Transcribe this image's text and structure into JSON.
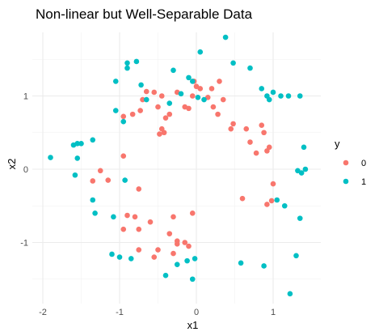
{
  "chart_data": {
    "type": "scatter",
    "title": "Non-linear but Well-Separable Data",
    "xlabel": "x1",
    "ylabel": "x2",
    "xlim": [
      -2.05,
      1.5
    ],
    "ylim": [
      -1.72,
      1.9
    ],
    "x_ticks": [
      -2,
      -1,
      0,
      1
    ],
    "y_ticks": [
      -1,
      0,
      1
    ],
    "x_tick_labels": [
      "-2",
      "-1",
      "0",
      "1"
    ],
    "y_tick_labels": [
      "-1",
      "0",
      "1"
    ],
    "grid": true,
    "legend_title": "y",
    "legend_position": "right",
    "series": [
      {
        "name": "0",
        "color": "#F8766D",
        "points": [
          [
            -0.7,
            0.95
          ],
          [
            -0.65,
            1.06
          ],
          [
            -0.5,
            0.85
          ],
          [
            -0.45,
            1.0
          ],
          [
            -0.55,
            1.05
          ],
          [
            -0.83,
            0.75
          ],
          [
            -0.95,
            0.72
          ],
          [
            -0.73,
            0.8
          ],
          [
            -0.4,
            0.7
          ],
          [
            -0.35,
            0.75
          ],
          [
            -0.25,
            1.05
          ],
          [
            -0.15,
            0.85
          ],
          [
            -0.1,
            0.83
          ],
          [
            -0.05,
            1.0
          ],
          [
            -0.03,
            1.2
          ],
          [
            0.0,
            1.13
          ],
          [
            0.05,
            1.1
          ],
          [
            0.15,
            0.98
          ],
          [
            0.2,
            1.1
          ],
          [
            0.22,
            0.85
          ],
          [
            0.3,
            1.2
          ],
          [
            0.35,
            0.95
          ],
          [
            0.28,
            0.75
          ],
          [
            0.45,
            0.55
          ],
          [
            0.48,
            0.62
          ],
          [
            0.65,
            0.55
          ],
          [
            0.7,
            0.37
          ],
          [
            0.78,
            0.22
          ],
          [
            0.85,
            0.6
          ],
          [
            0.88,
            0.5
          ],
          [
            0.92,
            0.25
          ],
          [
            0.95,
            0.3
          ],
          [
            1.0,
            -0.2
          ],
          [
            0.98,
            -0.43
          ],
          [
            0.92,
            -0.48
          ],
          [
            0.6,
            -0.4
          ],
          [
            -0.45,
            0.55
          ],
          [
            -0.42,
            0.5
          ],
          [
            -0.48,
            0.48
          ],
          [
            -0.95,
            0.18
          ],
          [
            -1.15,
            -0.15
          ],
          [
            -1.25,
            -0.02
          ],
          [
            -1.35,
            -0.16
          ],
          [
            -0.75,
            -0.27
          ],
          [
            -0.9,
            -0.63
          ],
          [
            -0.8,
            -0.65
          ],
          [
            -0.75,
            -0.82
          ],
          [
            -0.95,
            -0.82
          ],
          [
            -0.6,
            -0.72
          ],
          [
            -0.3,
            -0.65
          ],
          [
            -0.05,
            -0.6
          ],
          [
            -0.35,
            -0.88
          ],
          [
            -0.25,
            -0.98
          ],
          [
            -0.15,
            -1.0
          ],
          [
            -0.1,
            -1.05
          ],
          [
            -0.5,
            -1.1
          ],
          [
            -0.55,
            -1.2
          ],
          [
            -0.75,
            -1.1
          ],
          [
            -0.3,
            -1.15
          ],
          [
            -0.25,
            -1.02
          ]
        ]
      },
      {
        "name": "1",
        "color": "#00BFC4",
        "points": [
          [
            -1.9,
            0.16
          ],
          [
            -1.6,
            0.33
          ],
          [
            -1.55,
            0.35
          ],
          [
            -1.5,
            0.35
          ],
          [
            -1.35,
            0.4
          ],
          [
            -1.55,
            0.15
          ],
          [
            -1.58,
            -0.08
          ],
          [
            -1.35,
            -0.42
          ],
          [
            -1.32,
            -0.6
          ],
          [
            -1.08,
            -0.65
          ],
          [
            -0.93,
            -0.15
          ],
          [
            -1.05,
            1.2
          ],
          [
            -1.05,
            0.8
          ],
          [
            -0.95,
            0.65
          ],
          [
            -0.72,
            1.15
          ],
          [
            -0.9,
            1.45
          ],
          [
            -0.78,
            1.47
          ],
          [
            -0.65,
            0.95
          ],
          [
            -0.9,
            1.38
          ],
          [
            -0.35,
            0.9
          ],
          [
            -0.2,
            1.03
          ],
          [
            -0.3,
            1.35
          ],
          [
            -0.1,
            1.25
          ],
          [
            -0.05,
            1.2
          ],
          [
            0.02,
            0.98
          ],
          [
            0.05,
            1.6
          ],
          [
            0.1,
            0.95
          ],
          [
            0.38,
            1.8
          ],
          [
            0.48,
            1.45
          ],
          [
            0.7,
            1.38
          ],
          [
            0.85,
            1.1
          ],
          [
            0.92,
            1.0
          ],
          [
            1.0,
            1.05
          ],
          [
            1.1,
            1.0
          ],
          [
            1.2,
            1.0
          ],
          [
            1.35,
            1.0
          ],
          [
            0.95,
            0.95
          ],
          [
            1.4,
            0.3
          ],
          [
            1.32,
            -0.02
          ],
          [
            1.37,
            -0.05
          ],
          [
            1.42,
            0.0
          ],
          [
            1.35,
            -0.67
          ],
          [
            1.15,
            -0.5
          ],
          [
            1.05,
            -0.42
          ],
          [
            1.3,
            -1.18
          ],
          [
            1.22,
            -1.7
          ],
          [
            0.88,
            -1.32
          ],
          [
            0.58,
            -1.28
          ],
          [
            -0.02,
            -1.22
          ],
          [
            -0.12,
            -1.25
          ],
          [
            -0.25,
            -1.3
          ],
          [
            -0.4,
            -1.45
          ],
          [
            -0.05,
            -1.5
          ],
          [
            -0.85,
            -1.22
          ],
          [
            -1.0,
            -1.2
          ],
          [
            -1.1,
            -1.16
          ]
        ]
      }
    ]
  }
}
